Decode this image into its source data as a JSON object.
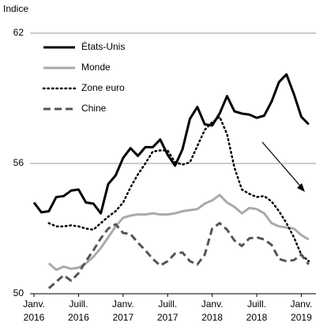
{
  "chart_data": {
    "type": "line",
    "y_label": "Indice",
    "x": [
      "2016-01",
      "2016-02",
      "2016-03",
      "2016-04",
      "2016-05",
      "2016-06",
      "2016-07",
      "2016-08",
      "2016-09",
      "2016-10",
      "2016-11",
      "2016-12",
      "2017-01",
      "2017-02",
      "2017-03",
      "2017-04",
      "2017-05",
      "2017-06",
      "2017-07",
      "2017-08",
      "2017-09",
      "2017-10",
      "2017-11",
      "2017-12",
      "2018-01",
      "2018-02",
      "2018-03",
      "2018-04",
      "2018-05",
      "2018-06",
      "2018-07",
      "2018-08",
      "2018-09",
      "2018-10",
      "2018-11",
      "2018-12",
      "2019-01",
      "2019-02"
    ],
    "xticks": [
      {
        "value": "2016-01",
        "label": [
          "Janv.",
          "2016"
        ]
      },
      {
        "value": "2016-07",
        "label": [
          "Juill.",
          "2016"
        ]
      },
      {
        "value": "2017-01",
        "label": [
          "Janv.",
          "2017"
        ]
      },
      {
        "value": "2017-07",
        "label": [
          "Juill.",
          "2017"
        ]
      },
      {
        "value": "2018-01",
        "label": [
          "Janv.",
          "2018"
        ]
      },
      {
        "value": "2018-07",
        "label": [
          "Juill.",
          "2018"
        ]
      },
      {
        "value": "2019-01",
        "label": [
          "Janv.",
          "2019"
        ]
      }
    ],
    "ylim": [
      50,
      62
    ],
    "yticks": [
      50,
      56,
      62
    ],
    "grid": true,
    "series": [
      {
        "name": "États-Unis",
        "color": "#000000",
        "dash": "solid",
        "values": [
          54.2,
          53.75,
          53.8,
          54.45,
          54.5,
          54.75,
          54.8,
          54.2,
          54.15,
          53.7,
          55.05,
          55.45,
          56.25,
          56.7,
          56.35,
          56.75,
          56.75,
          57.1,
          56.4,
          55.9,
          56.65,
          58.05,
          58.6,
          57.8,
          57.75,
          58.3,
          59.1,
          58.4,
          58.3,
          58.25,
          58.1,
          58.2,
          58.85,
          59.75,
          60.1,
          59.2,
          58.15,
          57.8
        ]
      },
      {
        "name": "Monde",
        "color": "#aaaaaa",
        "dash": "solid",
        "values": [
          null,
          null,
          51.4,
          51.1,
          51.25,
          51.15,
          51.2,
          51.4,
          51.7,
          52.1,
          52.6,
          53.1,
          53.5,
          53.6,
          53.65,
          53.65,
          53.7,
          53.65,
          53.65,
          53.7,
          53.8,
          53.85,
          53.9,
          54.15,
          54.3,
          54.55,
          54.2,
          54,
          53.7,
          53.95,
          53.9,
          53.7,
          53.25,
          53.1,
          53.05,
          53,
          52.7,
          52.5
        ]
      },
      {
        "name": "Zone euro",
        "color": "#000000",
        "dash": "dotted",
        "values": [
          null,
          null,
          53.25,
          53.1,
          53.1,
          53.15,
          53.1,
          53,
          52.95,
          53.25,
          53.55,
          53.8,
          54.2,
          54.9,
          55.5,
          56,
          56.55,
          56.6,
          56.6,
          56.05,
          55.95,
          56.05,
          56.8,
          57.55,
          57.9,
          58.15,
          57.35,
          55.8,
          54.8,
          54.6,
          54.45,
          54.5,
          54.25,
          53.8,
          53.25,
          52.6,
          51.8,
          51.5
        ]
      },
      {
        "name": "Chine",
        "color": "#555555",
        "dash": "dashed",
        "values": [
          null,
          null,
          50.25,
          50.55,
          50.85,
          50.6,
          50.95,
          51.5,
          52,
          52.55,
          53,
          53.2,
          52.8,
          52.75,
          52.35,
          52,
          51.6,
          51.3,
          51.5,
          51.85,
          51.9,
          51.5,
          51.35,
          51.8,
          53,
          53.25,
          52.95,
          52.45,
          52.2,
          52.55,
          52.6,
          52.5,
          52.25,
          51.6,
          51.5,
          51.55,
          51.8,
          51.35
        ]
      }
    ]
  }
}
